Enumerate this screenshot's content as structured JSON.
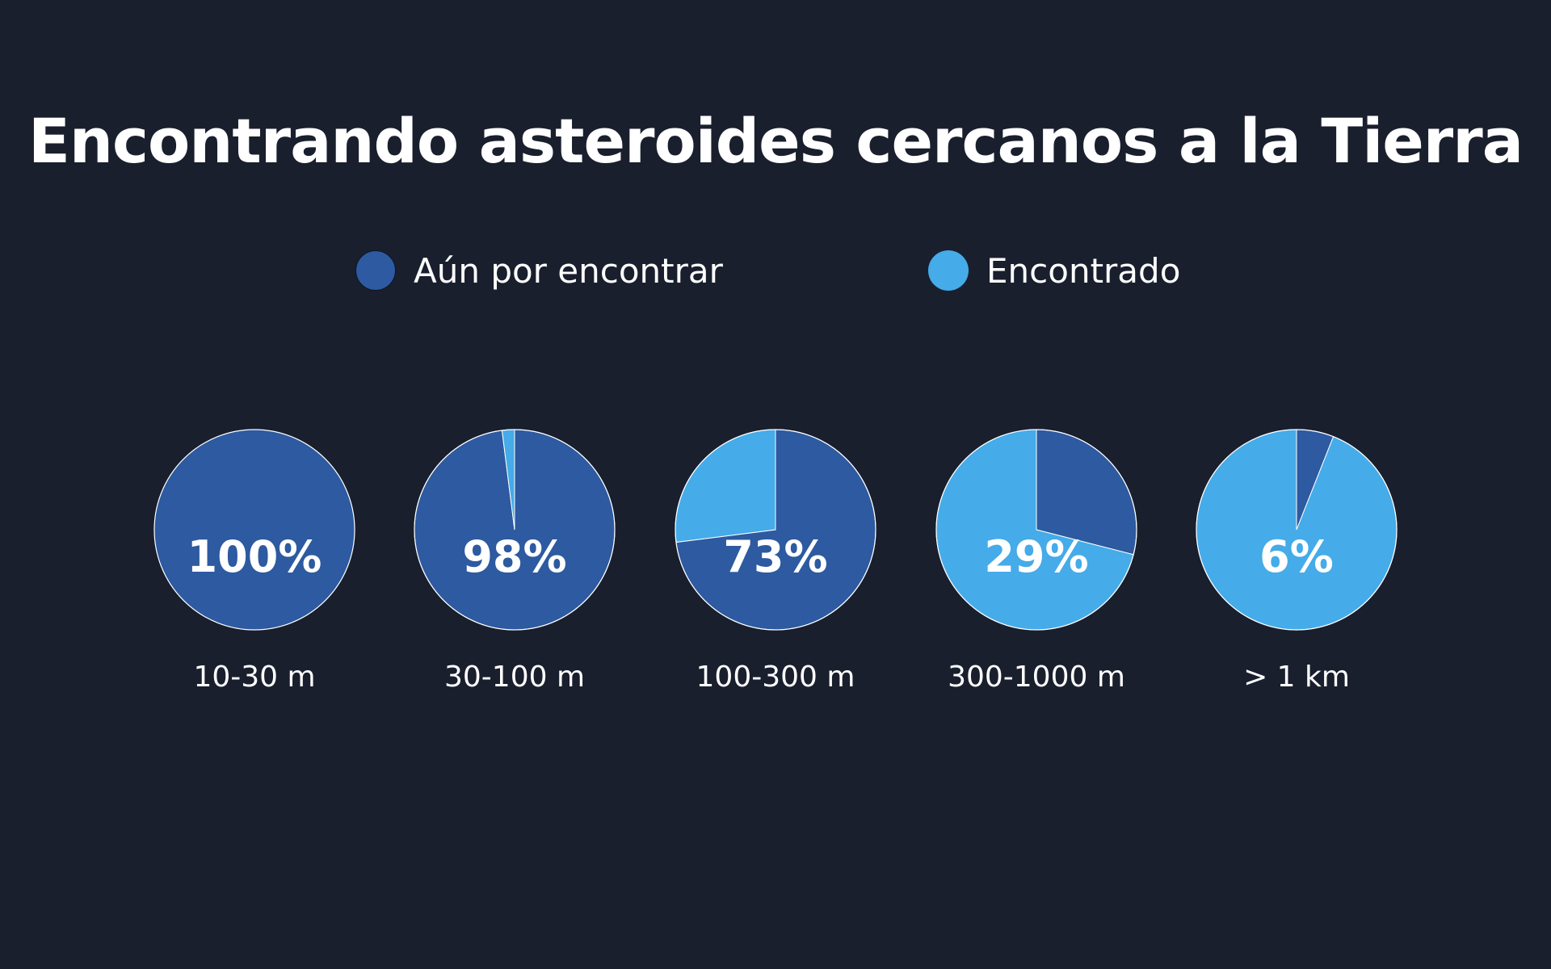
{
  "chart_data": {
    "type": "pie",
    "title": "Encontrando asteroides cercanos a la Tierra",
    "legend": [
      {
        "name": "Aún por encontrar",
        "color": "#2d5aa0"
      },
      {
        "name": "Encontrado",
        "color": "#45abe9"
      }
    ],
    "legend_position": "top",
    "categories": [
      "10-30 m",
      "30-100 m",
      "100-300 m",
      "300-1000 m",
      "> 1 km"
    ],
    "series": [
      {
        "name": "Aún por encontrar",
        "values": [
          100,
          98,
          73,
          29,
          6
        ]
      },
      {
        "name": "Encontrado",
        "values": [
          0,
          2,
          27,
          71,
          94
        ]
      }
    ],
    "labels": [
      "100%",
      "98%",
      "73%",
      "29%",
      "6%"
    ]
  }
}
